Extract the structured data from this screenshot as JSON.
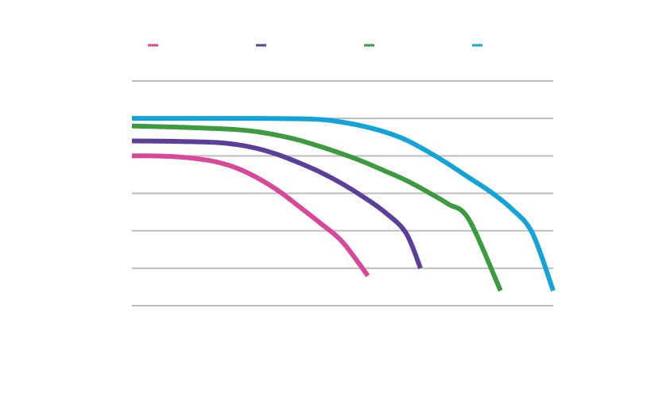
{
  "chart_data": {
    "type": "line",
    "x_range": [
      0,
      100
    ],
    "y_range": [
      0,
      6
    ],
    "y_gridlines": [
      0,
      1,
      2,
      3,
      4,
      5,
      6
    ],
    "grid": "horizontal",
    "legend_position": "top",
    "series": [
      {
        "color": "#d9479a",
        "x": [
          0,
          5,
          10,
          15,
          20,
          25,
          30,
          35,
          40,
          45,
          50,
          56
        ],
        "y": [
          4.0,
          4.0,
          3.98,
          3.93,
          3.84,
          3.67,
          3.4,
          3.05,
          2.62,
          2.18,
          1.7,
          0.8
        ]
      },
      {
        "color": "#5b3f9a",
        "x": [
          0,
          10,
          20,
          25,
          30,
          35,
          40,
          45,
          50,
          55,
          60,
          65,
          68.5
        ],
        "y": [
          4.4,
          4.39,
          4.36,
          4.3,
          4.19,
          4.02,
          3.8,
          3.55,
          3.25,
          2.9,
          2.5,
          1.95,
          1.0
        ]
      },
      {
        "color": "#3d9b3f",
        "x": [
          0,
          10,
          20,
          25,
          30,
          35,
          40,
          45,
          50,
          55,
          60,
          65,
          70,
          75,
          80,
          87.5
        ],
        "y": [
          4.8,
          4.77,
          4.73,
          4.7,
          4.64,
          4.54,
          4.41,
          4.24,
          4.05,
          3.84,
          3.6,
          3.35,
          3.05,
          2.72,
          2.3,
          0.4
        ]
      },
      {
        "color": "#12a3d9",
        "x": [
          0,
          10,
          20,
          30,
          40,
          45,
          50,
          55,
          60,
          65,
          70,
          75,
          80,
          85,
          90,
          95,
          100
        ],
        "y": [
          5.0,
          5.0,
          5.0,
          5.0,
          4.99,
          4.97,
          4.9,
          4.79,
          4.64,
          4.43,
          4.13,
          3.79,
          3.42,
          3.05,
          2.6,
          1.95,
          0.4
        ]
      }
    ]
  }
}
